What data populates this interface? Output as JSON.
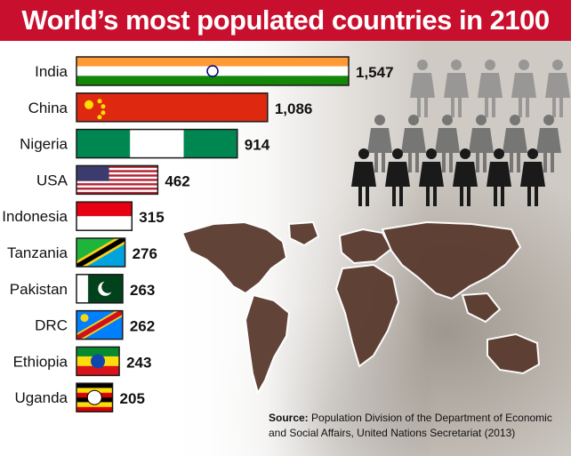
{
  "title": "World’s most populated countries in 2100",
  "source_label": "Source:",
  "source_text": "Population Division of the Department of Economic and Social Affairs, United Nations Secretariat (2013)",
  "colors": {
    "title_bg": "#c8102e",
    "people_dark": "#1a1a1a",
    "people_grey": "#8a8a8a",
    "map_fill": "#5a3a2e"
  },
  "chart_data": {
    "type": "bar",
    "orientation": "horizontal",
    "title": "World’s most populated countries in 2100",
    "categories": [
      "India",
      "China",
      "Nigeria",
      "USA",
      "Indonesia",
      "Tanzania",
      "Pakistan",
      "DRC",
      "Ethiopia",
      "Uganda"
    ],
    "values": [
      1547,
      1086,
      914,
      462,
      315,
      276,
      263,
      262,
      243,
      205
    ],
    "value_labels": [
      "1,547",
      "1,086",
      "914",
      "462",
      "315",
      "276",
      "263",
      "262",
      "243",
      "205"
    ],
    "bar_fill": [
      "flag-india",
      "flag-china",
      "flag-nigeria",
      "flag-usa",
      "flag-indonesia",
      "flag-tanzania",
      "flag-pakistan",
      "flag-drc",
      "flag-ethiopia",
      "flag-uganda"
    ],
    "xlim": [
      0,
      1547
    ],
    "grid": false,
    "legend": "none"
  }
}
